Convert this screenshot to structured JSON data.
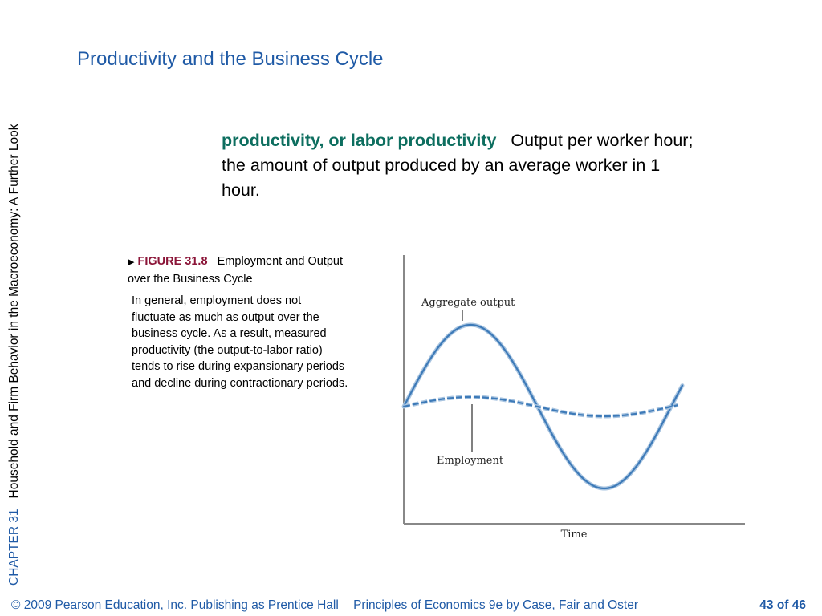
{
  "sidebar": {
    "chapter": "CHAPTER 31",
    "title": "Household and Firm Behavior in the Macroeconomy:  A Further Look"
  },
  "slide": {
    "title": "Productivity and the Business Cycle"
  },
  "definition": {
    "term": "productivity, or labor productivity",
    "text": "Output per worker hour; the amount of output produced by an average worker in 1 hour."
  },
  "figure": {
    "number": "FIGURE 31.8",
    "title": "Employment and Output over the Business Cycle",
    "description": "In general, employment does not fluctuate as much as output over the business cycle. As a result, measured productivity (the output-to-labor ratio) tends to rise during expansionary periods and decline during contractionary periods."
  },
  "chart_data": {
    "type": "line",
    "xlabel": "Time",
    "ylabel": "",
    "annotations": [
      "Aggregate output",
      "Employment"
    ],
    "series": [
      {
        "name": "Aggregate output",
        "style": "solid",
        "color": "#3d7ab8",
        "x": [
          0,
          0.5,
          1,
          1.5,
          2,
          2.5,
          3,
          3.5,
          4,
          4.5,
          5,
          5.5,
          6,
          6.5,
          7,
          7.5,
          8,
          8.5,
          9,
          9.5,
          10
        ],
        "values": [
          0,
          0.58,
          0.95,
          0.95,
          0.59,
          0,
          -0.58,
          -0.95,
          -0.95,
          -0.59,
          0,
          0.58,
          0.95,
          0.95,
          0.59,
          0.2,
          0,
          0,
          0,
          0,
          0
        ]
      },
      {
        "name": "Employment",
        "style": "dashed",
        "color": "#3d7ab8",
        "x": [
          0,
          1,
          2,
          3,
          4,
          5,
          6,
          7,
          8,
          9,
          10
        ],
        "values": [
          0,
          0.07,
          0.1,
          0.07,
          0,
          -0.07,
          -0.1,
          -0.07,
          0,
          0.07,
          0.1
        ]
      }
    ],
    "grid": false
  },
  "footer": {
    "copyright": "© 2009 Pearson Education, Inc. Publishing as Prentice Hall",
    "book": "Principles of Economics 9e by Case, Fair and Oster",
    "page": "43 of 46"
  },
  "colors": {
    "title_blue": "#1f5aa6",
    "term_green": "#0d6e5f",
    "figure_red": "#8b1538",
    "curve_blue": "#3d7ab8"
  }
}
